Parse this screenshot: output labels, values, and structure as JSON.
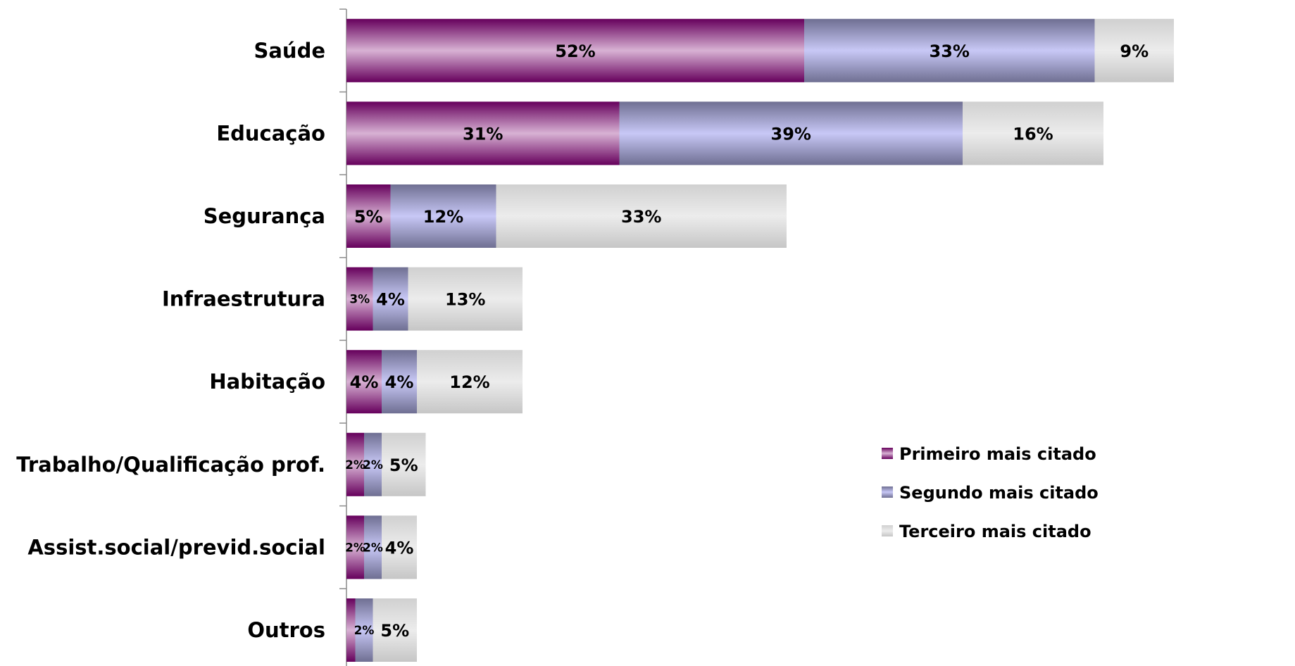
{
  "chart_data": {
    "type": "bar",
    "orientation": "horizontal",
    "stacked": true,
    "categories": [
      "Saúde",
      "Educação",
      "Segurança",
      "Infraestrutura",
      "Habitação",
      "Trabalho/Qualificação prof.",
      "Assist.social/previd.social",
      "Outros"
    ],
    "series": [
      {
        "name": "Primeiro mais citado",
        "values": [
          52,
          31,
          5,
          3,
          4,
          2,
          2,
          1
        ],
        "labels": [
          "52%",
          "31%",
          "5%",
          "3%",
          "4%",
          "2%",
          "2%",
          ""
        ],
        "color": "#7a1a6b"
      },
      {
        "name": "Segundo mais citado",
        "values": [
          33,
          39,
          12,
          4,
          4,
          2,
          2,
          2
        ],
        "labels": [
          "33%",
          "39%",
          "12%",
          "4%",
          "4%",
          "2%",
          "2%",
          "2%"
        ],
        "color": "#8e8eb8"
      },
      {
        "name": "Terceiro mais citado",
        "values": [
          9,
          16,
          33,
          13,
          12,
          5,
          4,
          5
        ],
        "labels": [
          "9%",
          "16%",
          "33%",
          "13%",
          "12%",
          "5%",
          "4%",
          "5%"
        ],
        "color": "#d6d6d6"
      }
    ],
    "title": "",
    "xlabel": "",
    "ylabel": "",
    "grid": false,
    "legend_position": "right"
  }
}
